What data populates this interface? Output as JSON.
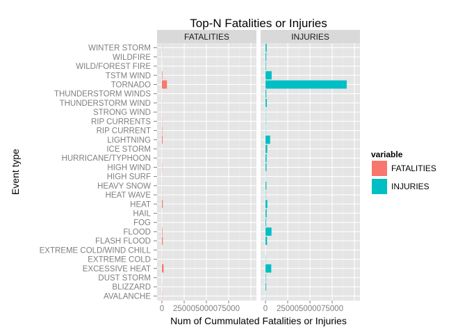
{
  "chart_data": {
    "type": "bar",
    "orientation": "horizontal",
    "title": "Top-N Fatalities or Injuries",
    "xlabel": "Num of Cummulated Fatalities or Injuries",
    "ylabel": "Event type",
    "xlim": [
      0,
      100000
    ],
    "x_ticks": [
      "0",
      "25000",
      "50000",
      "75000"
    ],
    "x_tick_values": [
      0,
      25000,
      50000,
      75000
    ],
    "grid": true,
    "legend_position": "right",
    "legend_title": "variable",
    "facets": [
      "FATALITIES",
      "INJURIES"
    ],
    "categories": [
      "AVALANCHE",
      "BLIZZARD",
      "DUST STORM",
      "EXCESSIVE HEAT",
      "EXTREME COLD",
      "EXTREME COLD/WIND CHILL",
      "FLASH FLOOD",
      "FLOOD",
      "FOG",
      "HAIL",
      "HEAT",
      "HEAT WAVE",
      "HEAVY SNOW",
      "HIGH SURF",
      "HIGH WIND",
      "HURRICANE/TYPHOON",
      "ICE STORM",
      "LIGHTNING",
      "RIP CURRENT",
      "RIP CURRENTS",
      "STRONG WIND",
      "THUNDERSTORM WIND",
      "THUNDERSTORM WINDS",
      "TORNADO",
      "TSTM WIND",
      "WILD/FOREST FIRE",
      "WILDFIRE",
      "WINTER STORM"
    ],
    "series": [
      {
        "name": "FATALITIES",
        "color": "#F8766D",
        "values": [
          224,
          101,
          22,
          1903,
          160,
          95,
          978,
          470,
          62,
          15,
          937,
          172,
          127,
          101,
          248,
          64,
          89,
          816,
          368,
          204,
          103,
          133,
          64,
          5633,
          504,
          12,
          75,
          206
        ]
      },
      {
        "name": "INJURIES",
        "color": "#00BFC4",
        "values": [
          170,
          805,
          440,
          6525,
          231,
          12,
          1777,
          6789,
          734,
          1361,
          2100,
          309,
          1021,
          156,
          1137,
          1275,
          1975,
          5230,
          232,
          297,
          280,
          1488,
          908,
          91346,
          6957,
          545,
          911,
          1321
        ]
      }
    ]
  }
}
